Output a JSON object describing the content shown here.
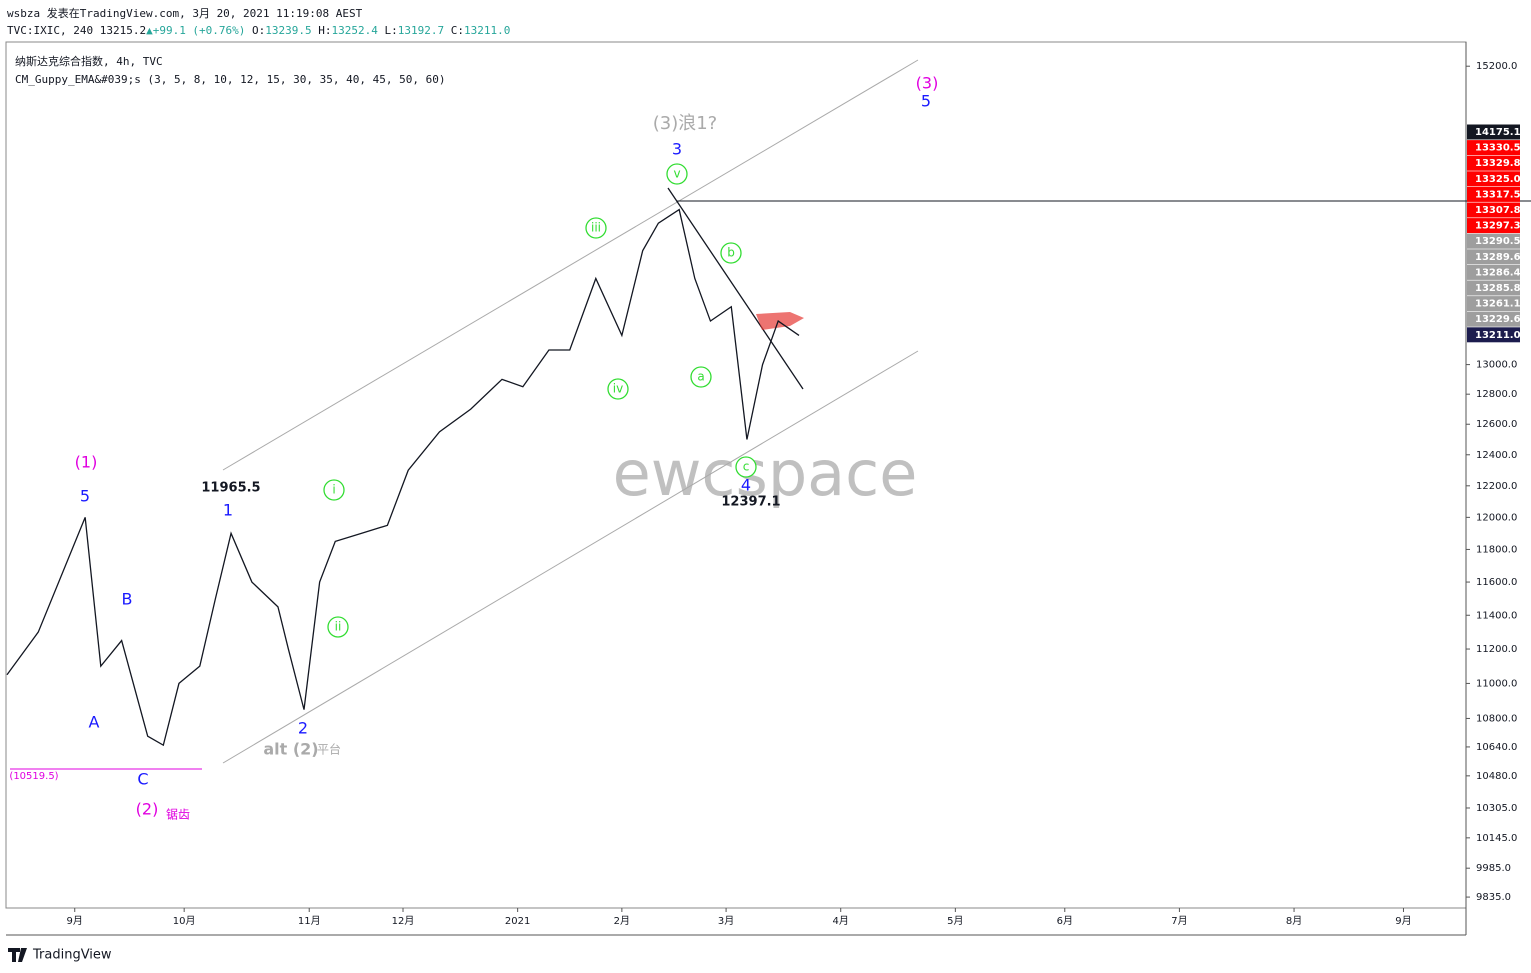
{
  "header": {
    "publisher": "wsbza 发表在TradingView.com, 3月 20, 2021 11:19:08 AEST",
    "symbol": "TVC:IXIC, 240",
    "last": "13215.2",
    "change": "▲+99.1 (+0.76%)",
    "ohlc": [
      {
        "key": "O:",
        "value": "13239.5"
      },
      {
        "key": "H:",
        "value": "13252.4"
      },
      {
        "key": "L:",
        "value": "13192.7"
      },
      {
        "key": "C:",
        "value": "13211.0"
      }
    ],
    "instrument": "纳斯达克综合指数, 4h, TVC",
    "indicator": "CM_Guppy_EMA&#039;s (3, 5, 8, 10, 12, 15, 30, 35, 40, 45, 50, 60)"
  },
  "chart_data": {
    "type": "line",
    "log_scale": true,
    "x": [
      0,
      6,
      15,
      18,
      22,
      27,
      30,
      33,
      37,
      40,
      43,
      47,
      52,
      54,
      57,
      60,
      63,
      68,
      73,
      77,
      83,
      89,
      95,
      99,
      104,
      108,
      113,
      118,
      122,
      125,
      129,
      132,
      135,
      139,
      142,
      145,
      148,
      152
    ],
    "values": [
      11050,
      11300,
      12000,
      11100,
      11250,
      10700,
      10650,
      11000,
      11100,
      11500,
      11900,
      11600,
      11450,
      11200,
      10850,
      11600,
      11850,
      11900,
      11950,
      12300,
      12550,
      12700,
      12900,
      12850,
      13100,
      13100,
      13600,
      13200,
      13800,
      14000,
      14100,
      13600,
      13300,
      13400,
      12500,
      13000,
      13300,
      13200
    ],
    "color": "#131722",
    "xlim": [
      0,
      280
    ],
    "xticks": [
      {
        "value": 13,
        "label": "9月"
      },
      {
        "value": 34,
        "label": "10月"
      },
      {
        "value": 58,
        "label": "11月"
      },
      {
        "value": 76,
        "label": "12月"
      },
      {
        "value": 98,
        "label": "2021"
      },
      {
        "value": 118,
        "label": "2月"
      },
      {
        "value": 138,
        "label": "3月"
      },
      {
        "value": 160,
        "label": "4月"
      },
      {
        "value": 182,
        "label": "5月"
      },
      {
        "value": 203,
        "label": "6月"
      },
      {
        "value": 225,
        "label": "7月"
      },
      {
        "value": 247,
        "label": "8月"
      },
      {
        "value": 268,
        "label": "9月"
      }
    ],
    "ylim": [
      9784,
      15394
    ],
    "yticks": [
      {
        "value": 15200,
        "label": "15200.0"
      },
      {
        "value": 13000,
        "label": "13000.0"
      },
      {
        "value": 12800,
        "label": "12800.0"
      },
      {
        "value": 12600,
        "label": "12600.0"
      },
      {
        "value": 12400,
        "label": "12400.0"
      },
      {
        "value": 12200,
        "label": "12200.0"
      },
      {
        "value": 12000,
        "label": "12000.0"
      },
      {
        "value": 11800,
        "label": "11800.0"
      },
      {
        "value": 11600,
        "label": "11600.0"
      },
      {
        "value": 11400,
        "label": "11400.0"
      },
      {
        "value": 11200,
        "label": "11200.0"
      },
      {
        "value": 11000,
        "label": "11000.0"
      },
      {
        "value": 10800,
        "label": "10800.0"
      },
      {
        "value": 10640,
        "label": "10640.0"
      },
      {
        "value": 10480,
        "label": "10480.0"
      },
      {
        "value": 10305,
        "label": "10305.0"
      },
      {
        "value": 10145,
        "label": "10145.0"
      },
      {
        "value": 9985,
        "label": "9985.0"
      },
      {
        "value": 9835,
        "label": "9835.0"
      }
    ],
    "price_markers": [
      {
        "label": "14175.1",
        "color": "#131722"
      },
      {
        "label": "13330.5",
        "color": "#ff0000"
      },
      {
        "label": "13329.8",
        "color": "#ff0000"
      },
      {
        "label": "13325.0",
        "color": "#ff0000"
      },
      {
        "label": "13317.5",
        "color": "#ff0000"
      },
      {
        "label": "13307.8",
        "color": "#ff0000"
      },
      {
        "label": "13297.3",
        "color": "#ff0000"
      },
      {
        "label": "13290.5",
        "color": "#9e9e9e"
      },
      {
        "label": "13289.6",
        "color": "#9e9e9e"
      },
      {
        "label": "13286.4",
        "color": "#9e9e9e"
      },
      {
        "label": "13285.8",
        "color": "#9e9e9e"
      },
      {
        "label": "13261.1",
        "color": "#9e9e9e"
      },
      {
        "label": "13229.6",
        "color": "#9e9e9e"
      },
      {
        "label": "13211.0",
        "color": "#1c1c4e"
      }
    ],
    "annotations": [
      "(3)",
      "5",
      "(3)浪1?",
      "3",
      "4",
      "12397.1",
      "(1)",
      "5",
      "11965.5",
      "1",
      "B",
      "A",
      "C",
      "2",
      "alt (2)",
      "平台",
      "(2)",
      "锯齿",
      "(10519.5)"
    ],
    "wave_circles": [
      "v",
      "iii",
      "b",
      "iv",
      "a",
      "c",
      "i",
      "ii"
    ],
    "watermark": "ewcspace"
  },
  "footer": {
    "brand": "TradingView"
  }
}
